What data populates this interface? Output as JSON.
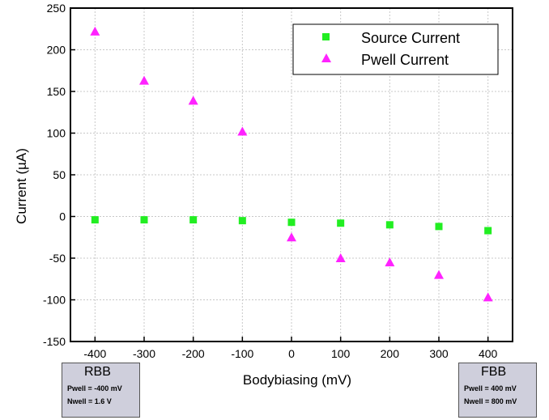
{
  "chart_data": {
    "type": "scatter",
    "title": "",
    "xlabel": "Bodybiasing (mV)",
    "ylabel": "Current (µA)",
    "xlim": [
      -450,
      450
    ],
    "ylim": [
      -150,
      250
    ],
    "grid": true,
    "legend_position": "top-right",
    "x_ticks": [
      -400,
      -300,
      -200,
      -100,
      0,
      100,
      200,
      300,
      400
    ],
    "y_ticks": [
      -150,
      -100,
      -50,
      0,
      50,
      100,
      150,
      200,
      250
    ],
    "x_tick_labels": [
      "-400",
      "-300",
      "-200",
      "-100",
      "0",
      "100",
      "200",
      "300",
      "400"
    ],
    "y_tick_labels": [
      "-150",
      "-100",
      "-50",
      "0",
      "50",
      "100",
      "150",
      "200",
      "250"
    ],
    "x": [
      -400,
      -300,
      -200,
      -100,
      0,
      100,
      200,
      300,
      400
    ],
    "series": [
      {
        "name": "Source Current",
        "marker": "square",
        "color": "#22ee22",
        "values": [
          -4,
          -4,
          -4,
          -5,
          -7,
          -8,
          -10,
          -12,
          -17
        ]
      },
      {
        "name": "Pwell Current",
        "marker": "triangle",
        "color": "#ff22ff",
        "values": [
          222,
          163,
          139,
          102,
          -25,
          -50,
          -55,
          -70,
          -97
        ]
      }
    ]
  },
  "annotations": {
    "rbb": {
      "title": "RBB",
      "line1": "Pwell = -400 mV",
      "line2": "Nwell = 1.6 V"
    },
    "fbb": {
      "title": "FBB",
      "line1": "Pwell = 400 mV",
      "line2": "Nwell = 800 mV"
    }
  }
}
